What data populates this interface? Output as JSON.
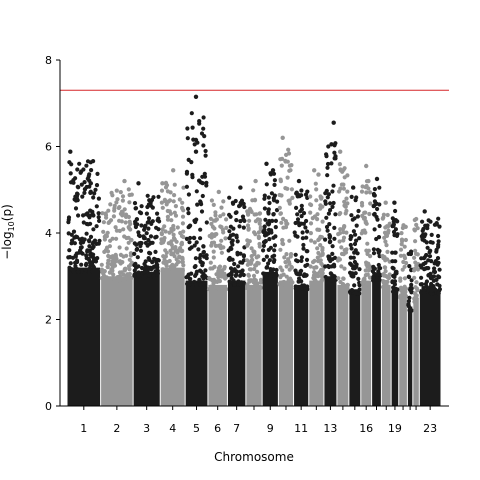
{
  "chart_data": {
    "type": "scatter",
    "title": "",
    "xlabel": "Chromosome",
    "ylabel_base": "−log",
    "ylabel_sub": "10",
    "ylabel_tail": "(p)",
    "ylim": [
      0,
      8
    ],
    "yticks": [
      0,
      2,
      4,
      6,
      8
    ],
    "xlim": [
      0,
      23.5
    ],
    "grid": false,
    "significance_line": 7.3,
    "colors": {
      "chrom_odd": "#1c1c1c",
      "chrom_even": "#969696",
      "threshold": "#d62728",
      "axis": "#000000"
    },
    "chromosomes": [
      {
        "chr": 1,
        "start": 0.0,
        "end": 1.55,
        "label": "1",
        "top": 5.9,
        "bulk": 4.3
      },
      {
        "chr": 2,
        "start": 1.55,
        "end": 3.05,
        "label": "2",
        "top": 5.2,
        "bulk": 4.1
      },
      {
        "chr": 3,
        "start": 3.05,
        "end": 4.3,
        "label": "3",
        "top": 5.15,
        "bulk": 4.2
      },
      {
        "chr": 4,
        "start": 4.3,
        "end": 5.45,
        "label": "4",
        "top": 5.45,
        "bulk": 4.3
      },
      {
        "chr": 5,
        "start": 5.45,
        "end": 6.5,
        "label": "5",
        "top": 7.15,
        "bulk": 4.0
      },
      {
        "chr": 6,
        "start": 6.5,
        "end": 7.4,
        "label": "6",
        "top": 4.95,
        "bulk": 3.9
      },
      {
        "chr": 7,
        "start": 7.4,
        "end": 8.25,
        "label": "7",
        "top": 5.05,
        "bulk": 4.0
      },
      {
        "chr": 8,
        "start": 8.25,
        "end": 9.0,
        "label": "",
        "top": 5.2,
        "bulk": 3.9
      },
      {
        "chr": 9,
        "start": 9.0,
        "end": 9.75,
        "label": "9",
        "top": 5.6,
        "bulk": 4.2
      },
      {
        "chr": 10,
        "start": 9.75,
        "end": 10.45,
        "label": "",
        "top": 6.2,
        "bulk": 4.0
      },
      {
        "chr": 11,
        "start": 10.45,
        "end": 11.15,
        "label": "11",
        "top": 5.2,
        "bulk": 3.9
      },
      {
        "chr": 12,
        "start": 11.15,
        "end": 11.85,
        "label": "",
        "top": 5.45,
        "bulk": 4.0
      },
      {
        "chr": 13,
        "start": 11.85,
        "end": 12.45,
        "label": "13",
        "top": 6.55,
        "bulk": 4.1
      },
      {
        "chr": 14,
        "start": 12.45,
        "end": 13.0,
        "label": "",
        "top": 5.9,
        "bulk": 3.9
      },
      {
        "chr": 15,
        "start": 13.0,
        "end": 13.55,
        "label": "",
        "top": 5.05,
        "bulk": 3.8
      },
      {
        "chr": 16,
        "start": 13.55,
        "end": 14.05,
        "label": "16",
        "top": 5.55,
        "bulk": 4.0
      },
      {
        "chr": 17,
        "start": 14.05,
        "end": 14.5,
        "label": "",
        "top": 5.25,
        "bulk": 4.1
      },
      {
        "chr": 18,
        "start": 14.5,
        "end": 14.95,
        "label": "",
        "top": 4.7,
        "bulk": 3.9
      },
      {
        "chr": 19,
        "start": 14.95,
        "end": 15.3,
        "label": "19",
        "top": 4.7,
        "bulk": 3.8
      },
      {
        "chr": 20,
        "start": 15.3,
        "end": 15.7,
        "label": "",
        "top": 4.4,
        "bulk": 3.7
      },
      {
        "chr": 21,
        "start": 15.7,
        "end": 15.95,
        "label": "",
        "top": 3.7,
        "bulk": 3.4
      },
      {
        "chr": 22,
        "start": 15.95,
        "end": 16.25,
        "label": "",
        "top": 4.5,
        "bulk": 3.6
      },
      {
        "chr": 23,
        "start": 16.25,
        "end": 17.25,
        "label": "23",
        "top": 4.5,
        "bulk": 3.8
      }
    ],
    "notable_points": [
      {
        "x": 0.15,
        "y": 5.88
      },
      {
        "x": 0.45,
        "y": 4.85
      },
      {
        "x": 1.1,
        "y": 5.15
      },
      {
        "x": 2.65,
        "y": 5.2
      },
      {
        "x": 3.3,
        "y": 5.15
      },
      {
        "x": 4.4,
        "y": 5.15
      },
      {
        "x": 4.9,
        "y": 5.45
      },
      {
        "x": 5.95,
        "y": 7.15
      },
      {
        "x": 5.95,
        "y": 6.15
      },
      {
        "x": 5.95,
        "y": 5.88
      },
      {
        "x": 7.0,
        "y": 4.95
      },
      {
        "x": 8.0,
        "y": 5.05
      },
      {
        "x": 8.7,
        "y": 5.2
      },
      {
        "x": 9.2,
        "y": 5.6
      },
      {
        "x": 9.5,
        "y": 5.45
      },
      {
        "x": 9.95,
        "y": 6.2
      },
      {
        "x": 10.7,
        "y": 5.2
      },
      {
        "x": 11.4,
        "y": 5.45
      },
      {
        "x": 11.6,
        "y": 5.35
      },
      {
        "x": 12.2,
        "y": 6.05
      },
      {
        "x": 12.3,
        "y": 6.55
      },
      {
        "x": 12.6,
        "y": 5.88
      },
      {
        "x": 13.2,
        "y": 5.05
      },
      {
        "x": 13.8,
        "y": 5.55
      },
      {
        "x": 13.9,
        "y": 5.2
      },
      {
        "x": 14.3,
        "y": 5.25
      },
      {
        "x": 14.7,
        "y": 4.7
      },
      {
        "x": 15.1,
        "y": 4.7
      },
      {
        "x": 16.5,
        "y": 4.5
      }
    ]
  }
}
